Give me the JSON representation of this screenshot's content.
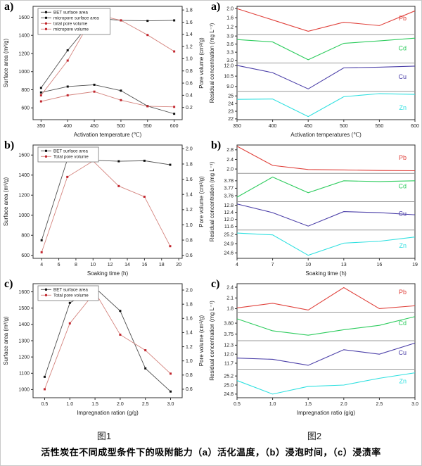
{
  "figure1_label": "图1",
  "figure2_label": "图2",
  "caption": "活性炭在不同成型条件下的吸附能力（a）活化温度，（b）浸泡时间，（c）浸渍率",
  "chart_data": [
    {
      "id": "fig1a",
      "figure": "图1",
      "panel": "a)",
      "type": "line",
      "subtype": "dual-axis",
      "xlabel": "Activation temperature (℃)",
      "x_min": 335,
      "x_max": 615,
      "x_ticks": [
        "350",
        "400",
        "450",
        "500",
        "550",
        "600"
      ],
      "x": [
        350,
        400,
        450,
        500,
        550,
        600
      ],
      "left_axis": {
        "label": "Surface area (m²/g)",
        "min": 470,
        "max": 1720,
        "ticks": [
          "600",
          "800",
          "1000",
          "1200",
          "1400",
          "1600"
        ]
      },
      "right_axis": {
        "label": "Pore volume (cm³/g)",
        "min": 0.0,
        "max": 1.86,
        "ticks": [
          "0.2",
          "0.4",
          "0.6",
          "0.8",
          "1.0",
          "1.2",
          "1.4",
          "1.6",
          "1.8"
        ]
      },
      "series": [
        {
          "name": "BET surface area",
          "axis": "left",
          "line_color": "#4f4f4f",
          "marker_color": "#111111",
          "values": [
            820,
            1235,
            1590,
            1565,
            1560,
            1565
          ]
        },
        {
          "name": "micropore surface area",
          "axis": "left",
          "line_color": "#4f4f4f",
          "marker_color": "#111111",
          "values": [
            770,
            835,
            855,
            790,
            620,
            535
          ]
        },
        {
          "name": "total pore volume",
          "axis": "right",
          "line_color": "#d4837d",
          "marker_color": "#c2262e",
          "values": [
            0.4,
            0.97,
            1.73,
            1.63,
            1.39,
            1.12
          ]
        },
        {
          "name": "micropore volume",
          "axis": "right",
          "line_color": "#d4837d",
          "marker_color": "#c2262e",
          "values": [
            0.3,
            0.4,
            0.46,
            0.32,
            0.22,
            0.21
          ]
        }
      ]
    },
    {
      "id": "fig1b",
      "figure": "图1",
      "panel": "b)",
      "type": "line",
      "subtype": "dual-axis",
      "xlabel": "Soaking time (h)",
      "x_min": 3,
      "x_max": 20.4,
      "x_ticks": [
        "4",
        "6",
        "8",
        "10",
        "12",
        "14",
        "16",
        "18",
        "20"
      ],
      "x": [
        4,
        7,
        10,
        13,
        16,
        19
      ],
      "left_axis": {
        "label": "Surface area (m²/g)",
        "min": 570,
        "max": 1700,
        "ticks": [
          "600",
          "800",
          "1000",
          "1200",
          "1400",
          "1600"
        ]
      },
      "right_axis": {
        "label": "Pore volume (cm³/g)",
        "min": 0.56,
        "max": 2.05,
        "ticks": [
          "0.6",
          "0.8",
          "1.0",
          "1.2",
          "1.4",
          "1.6",
          "1.8",
          "2.0"
        ]
      },
      "series": [
        {
          "name": "BET surface area",
          "axis": "left",
          "line_color": "#4f4f4f",
          "marker_color": "#111111",
          "values": [
            750,
            1555,
            1548,
            1538,
            1543,
            1503
          ]
        },
        {
          "name": "Total pore volume",
          "axis": "right",
          "line_color": "#d4837d",
          "marker_color": "#c2262e",
          "values": [
            0.64,
            1.63,
            1.84,
            1.51,
            1.37,
            0.72
          ]
        }
      ]
    },
    {
      "id": "fig1c",
      "figure": "图1",
      "panel": "c)",
      "type": "line",
      "subtype": "dual-axis",
      "xlabel": "Impregnation ration (g/g)",
      "x_min": 0.27,
      "x_max": 3.23,
      "x_ticks": [
        "0.5",
        "1.0",
        "1.5",
        "2.0",
        "2.5",
        "3.0"
      ],
      "x": [
        0.5,
        1.0,
        1.5,
        2.0,
        2.5,
        3.0
      ],
      "left_axis": {
        "label": "Surface area (m²/g)",
        "min": 950,
        "max": 1650,
        "ticks": [
          "1000",
          "1100",
          "1200",
          "1300",
          "1400",
          "1500",
          "1600"
        ]
      },
      "right_axis": {
        "label": "Pore volume (cm³/g)",
        "min": 0.48,
        "max": 2.09,
        "ticks": [
          "0.6",
          "0.8",
          "1.0",
          "1.2",
          "1.4",
          "1.6",
          "1.8",
          "2.0"
        ]
      },
      "series": [
        {
          "name": "BET surface area",
          "axis": "left",
          "line_color": "#4f4f4f",
          "marker_color": "#111111",
          "values": [
            1078,
            1532,
            1625,
            1483,
            1130,
            988
          ]
        },
        {
          "name": "Total pore volume",
          "axis": "right",
          "line_color": "#d4837d",
          "marker_color": "#c2262e",
          "values": [
            0.6,
            1.53,
            1.97,
            1.37,
            1.15,
            0.82
          ]
        }
      ]
    },
    {
      "id": "fig2a",
      "figure": "图2",
      "panel": "a)",
      "type": "line",
      "subtype": "stacked-panels",
      "xlabel": "Activation temperatures (℃)",
      "ylabel": "Residual concentration (mg L⁻¹)",
      "x_min": 350,
      "x_max": 600,
      "x_ticks": [
        "350",
        "400",
        "450",
        "500",
        "550",
        "600"
      ],
      "x": [
        350,
        400,
        450,
        500,
        550,
        600
      ],
      "panels": [
        {
          "element": "Pb",
          "color": "#e0423c",
          "y_min": 0.85,
          "y_max": 2.1,
          "ticks": [
            "2.0",
            "1.6",
            "1.2"
          ],
          "values": [
            2.0,
            1.5,
            1.0,
            1.4,
            1.25,
            1.9
          ],
          "label_frac": 0.42
        },
        {
          "element": "Cd",
          "color": "#2ecc5e",
          "y_min": 2.9,
          "y_max": 3.95,
          "ticks": [
            "3.9",
            "3.6",
            "3.3",
            "3.0"
          ],
          "values": [
            3.77,
            3.68,
            3.02,
            3.63,
            3.72,
            3.82
          ],
          "label_frac": 0.48
        },
        {
          "element": "Cu",
          "color": "#4b3fa8",
          "y_min": 8.3,
          "y_max": 12.4,
          "ticks": [
            "12.0",
            "10.5",
            "9.0"
          ],
          "values": [
            12.05,
            11.0,
            8.65,
            11.7,
            11.8,
            11.95
          ],
          "label_frac": 0.48
        },
        {
          "element": "Zn",
          "color": "#2ee0e0",
          "y_min": 21.9,
          "y_max": 25.6,
          "ticks": [
            "25",
            "24",
            "23",
            "22"
          ],
          "values": [
            24.55,
            24.6,
            22.3,
            24.9,
            25.3,
            25.2
          ],
          "label_frac": 0.58
        }
      ]
    },
    {
      "id": "fig2b",
      "figure": "图2",
      "panel": "b)",
      "type": "line",
      "subtype": "stacked-panels",
      "xlabel": "Soaking time (h)",
      "ylabel": "Residual concentration (mg L⁻¹)",
      "x_min": 4,
      "x_max": 19,
      "x_ticks": [
        "4",
        "7",
        "10",
        "13",
        "16",
        "19"
      ],
      "x": [
        4,
        7,
        10,
        13,
        16,
        19
      ],
      "panels": [
        {
          "element": "Pb",
          "color": "#e0423c",
          "y_min": 1.82,
          "y_max": 3.0,
          "ticks": [
            "2.8",
            "2.4",
            "2.0"
          ],
          "values": [
            2.95,
            2.15,
            1.98,
            1.96,
            1.94,
            1.93
          ],
          "label_frac": 0.45
        },
        {
          "element": "Cd",
          "color": "#2ecc5e",
          "y_min": 3.752,
          "y_max": 3.79,
          "ticks": [
            "3.78",
            "3.77",
            "3.76"
          ],
          "values": [
            3.758,
            3.785,
            3.764,
            3.78,
            3.779,
            3.78
          ],
          "label_frac": 0.45
        },
        {
          "element": "Cu",
          "color": "#4b3fa8",
          "y_min": 11.4,
          "y_max": 13.0,
          "ticks": [
            "12.8",
            "12.4",
            "12.0",
            "11.6"
          ],
          "values": [
            12.87,
            12.38,
            11.62,
            12.44,
            12.38,
            12.26
          ],
          "label_frac": 0.42
        },
        {
          "element": "Zn",
          "color": "#2ee0e0",
          "y_min": 24.42,
          "y_max": 25.35,
          "ticks": [
            "25.2",
            "24.9",
            "24.6"
          ],
          "values": [
            25.25,
            25.19,
            24.52,
            24.92,
            24.98,
            25.12
          ],
          "label_frac": 0.55
        }
      ]
    },
    {
      "id": "fig2c",
      "figure": "图2",
      "panel": "c)",
      "type": "line",
      "subtype": "stacked-panels",
      "xlabel": "Impregnation ratio (g/g)",
      "ylabel": "Residual concentration (mg L⁻¹)",
      "x_min": 0.5,
      "x_max": 3.0,
      "x_ticks": [
        "0.5",
        "1.0",
        "1.5",
        "2.0",
        "2.5",
        "3.0"
      ],
      "x": [
        0.5,
        1.0,
        1.5,
        2.0,
        2.5,
        3.0
      ],
      "panels": [
        {
          "element": "Pb",
          "color": "#e0423c",
          "y_min": 1.7,
          "y_max": 2.5,
          "ticks": [
            "2.4",
            "2.1",
            "1.8"
          ],
          "values": [
            1.82,
            1.95,
            1.76,
            2.39,
            1.8,
            1.88
          ],
          "label_frac": 0.3
        },
        {
          "element": "Cd",
          "color": "#2ecc5e",
          "y_min": 3.72,
          "y_max": 3.85,
          "ticks": [
            "3.80",
            "3.75"
          ],
          "values": [
            3.82,
            3.765,
            3.745,
            3.77,
            3.79,
            3.83
          ],
          "label_frac": 0.38
        },
        {
          "element": "Cu",
          "color": "#4b3fa8",
          "y_min": 11.5,
          "y_max": 12.45,
          "ticks": [
            "12.3",
            "12.0",
            "11.7"
          ],
          "values": [
            11.87,
            11.83,
            11.63,
            12.15,
            12.0,
            12.37
          ],
          "label_frac": 0.42
        },
        {
          "element": "Zn",
          "color": "#2ee0e0",
          "y_min": 24.72,
          "y_max": 25.35,
          "ticks": [
            "25.2",
            "25.0",
            "24.8"
          ],
          "values": [
            25.1,
            24.8,
            24.97,
            25.0,
            25.15,
            25.27
          ],
          "label_frac": 0.42
        }
      ]
    }
  ]
}
